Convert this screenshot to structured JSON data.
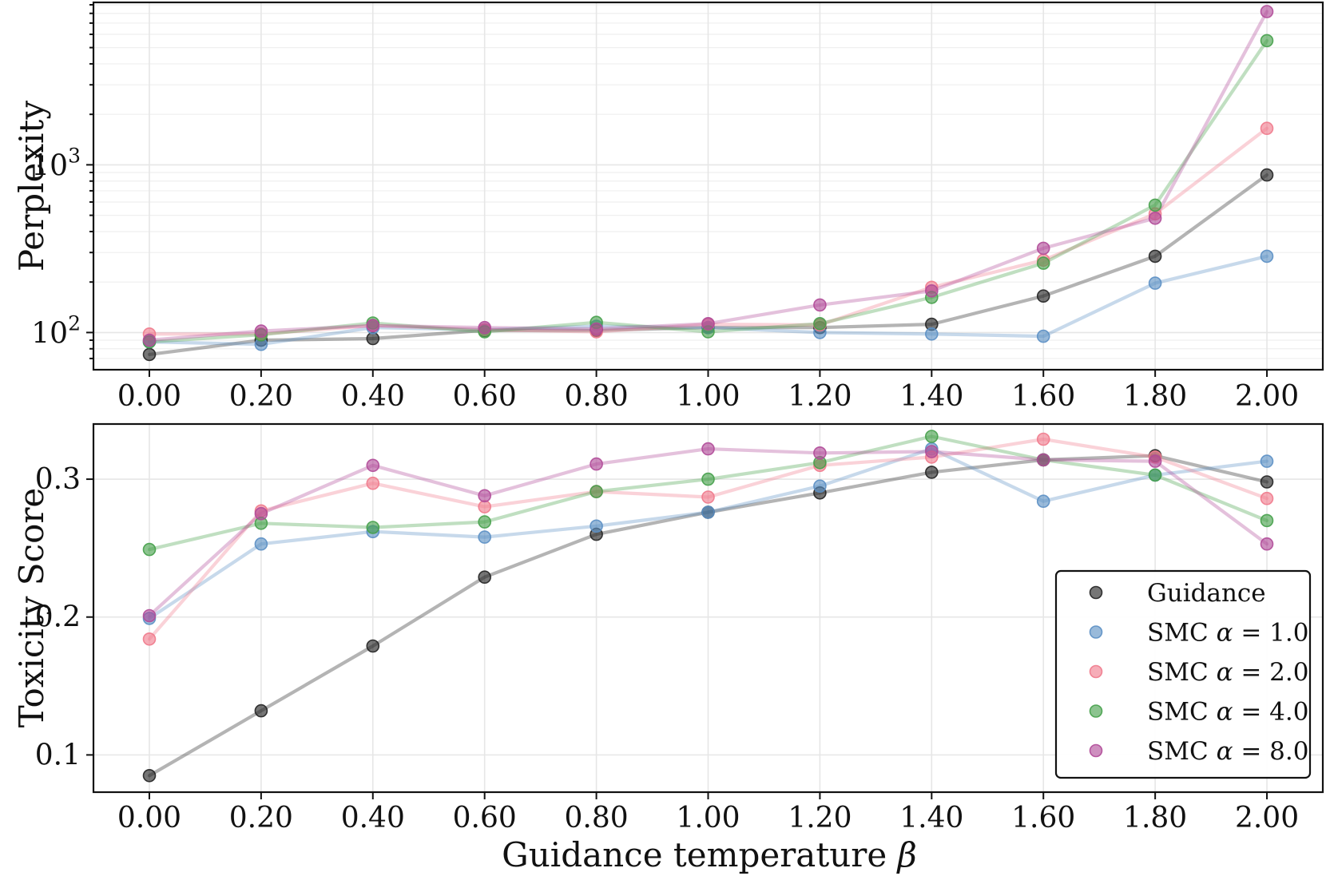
{
  "chart_data": [
    {
      "id": "perplexity",
      "type": "line",
      "ylabel": "Perplexity",
      "yscale": "log",
      "ylim": [
        60,
        9300
      ],
      "ytick_values": [
        100,
        1000
      ],
      "ytick_labels": [
        {
          "base": "10",
          "exp": "2"
        },
        {
          "base": "10",
          "exp": "3"
        }
      ],
      "x": [
        0.0,
        0.2,
        0.4,
        0.6,
        0.8,
        1.0,
        1.2,
        1.4,
        1.6,
        1.8,
        2.0
      ],
      "xtick_labels": [
        "0.00",
        "0.20",
        "0.40",
        "0.60",
        "0.80",
        "1.00",
        "1.20",
        "1.40",
        "1.60",
        "1.80",
        "2.00"
      ],
      "xlim": [
        -0.1,
        2.1
      ],
      "grid": true,
      "series": [
        {
          "name": "Guidance",
          "color": "#222222",
          "values": [
            74,
            90,
            92,
            103,
            103,
            107,
            107,
            112,
            165,
            285,
            870
          ]
        },
        {
          "name": "SMC α = 1.0",
          "color": "#5b8fc4",
          "values": [
            88,
            85,
            107,
            104,
            109,
            107,
            100,
            98,
            95,
            197,
            285
          ]
        },
        {
          "name": "SMC α = 2.0",
          "color": "#f07a8c",
          "values": [
            98,
            98,
            110,
            104,
            101,
            112,
            111,
            186,
            270,
            510,
            1650
          ]
        },
        {
          "name": "SMC α = 4.0",
          "color": "#45a04a",
          "values": [
            88,
            97,
            114,
            101,
            115,
            101,
            113,
            162,
            259,
            575,
            5500
          ]
        },
        {
          "name": "SMC α = 8.0",
          "color": "#b04a98",
          "values": [
            90,
            102,
            110,
            107,
            105,
            113,
            146,
            177,
            318,
            480,
            8200
          ]
        }
      ]
    },
    {
      "id": "toxicity",
      "type": "line",
      "ylabel": "Toxicity Score",
      "xlabel": "Guidance temperature β",
      "ylim": [
        0.073,
        0.34
      ],
      "ytick_values": [
        0.1,
        0.2,
        0.3
      ],
      "ytick_labels": [
        "0.1",
        "0.2",
        "0.3"
      ],
      "x": [
        0.0,
        0.2,
        0.4,
        0.6,
        0.8,
        1.0,
        1.2,
        1.4,
        1.6,
        1.8,
        2.0
      ],
      "xtick_labels": [
        "0.00",
        "0.20",
        "0.40",
        "0.60",
        "0.80",
        "1.00",
        "1.20",
        "1.40",
        "1.60",
        "1.80",
        "2.00"
      ],
      "xlim": [
        -0.1,
        2.1
      ],
      "grid": true,
      "legend_position": "lower-right",
      "series": [
        {
          "name": "Guidance",
          "color": "#222222",
          "values": [
            0.085,
            0.132,
            0.179,
            0.229,
            0.26,
            0.276,
            0.29,
            0.305,
            0.314,
            0.317,
            0.298
          ]
        },
        {
          "name": "SMC α = 1.0",
          "color": "#5b8fc4",
          "values": [
            0.199,
            0.253,
            0.262,
            0.258,
            0.266,
            0.276,
            0.295,
            0.322,
            0.284,
            0.303,
            0.313
          ]
        },
        {
          "name": "SMC α = 2.0",
          "color": "#f07a8c",
          "values": [
            0.184,
            0.277,
            0.297,
            0.28,
            0.291,
            0.287,
            0.31,
            0.316,
            0.329,
            0.316,
            0.286
          ]
        },
        {
          "name": "SMC α = 4.0",
          "color": "#45a04a",
          "values": [
            0.249,
            0.268,
            0.265,
            0.269,
            0.291,
            0.3,
            0.312,
            0.331,
            0.314,
            0.303,
            0.27
          ]
        },
        {
          "name": "SMC α = 8.0",
          "color": "#b04a98",
          "values": [
            0.201,
            0.275,
            0.31,
            0.288,
            0.311,
            0.322,
            0.319,
            0.32,
            0.314,
            0.313,
            0.253
          ]
        }
      ]
    }
  ],
  "legend": {
    "position": "lower-right",
    "entries": [
      {
        "label": "Guidance",
        "color": "#222222"
      },
      {
        "prefix": "SMC",
        "symbol": "α",
        "value": "= 1.0",
        "color": "#5b8fc4"
      },
      {
        "prefix": "SMC",
        "symbol": "α",
        "value": "= 2.0",
        "color": "#f07a8c"
      },
      {
        "prefix": "SMC",
        "symbol": "α",
        "value": "= 4.0",
        "color": "#45a04a"
      },
      {
        "prefix": "SMC",
        "symbol": "α",
        "value": "= 8.0",
        "color": "#b04a98"
      }
    ]
  },
  "xlabel": {
    "text": "Guidance temperature",
    "symbol": "β"
  }
}
